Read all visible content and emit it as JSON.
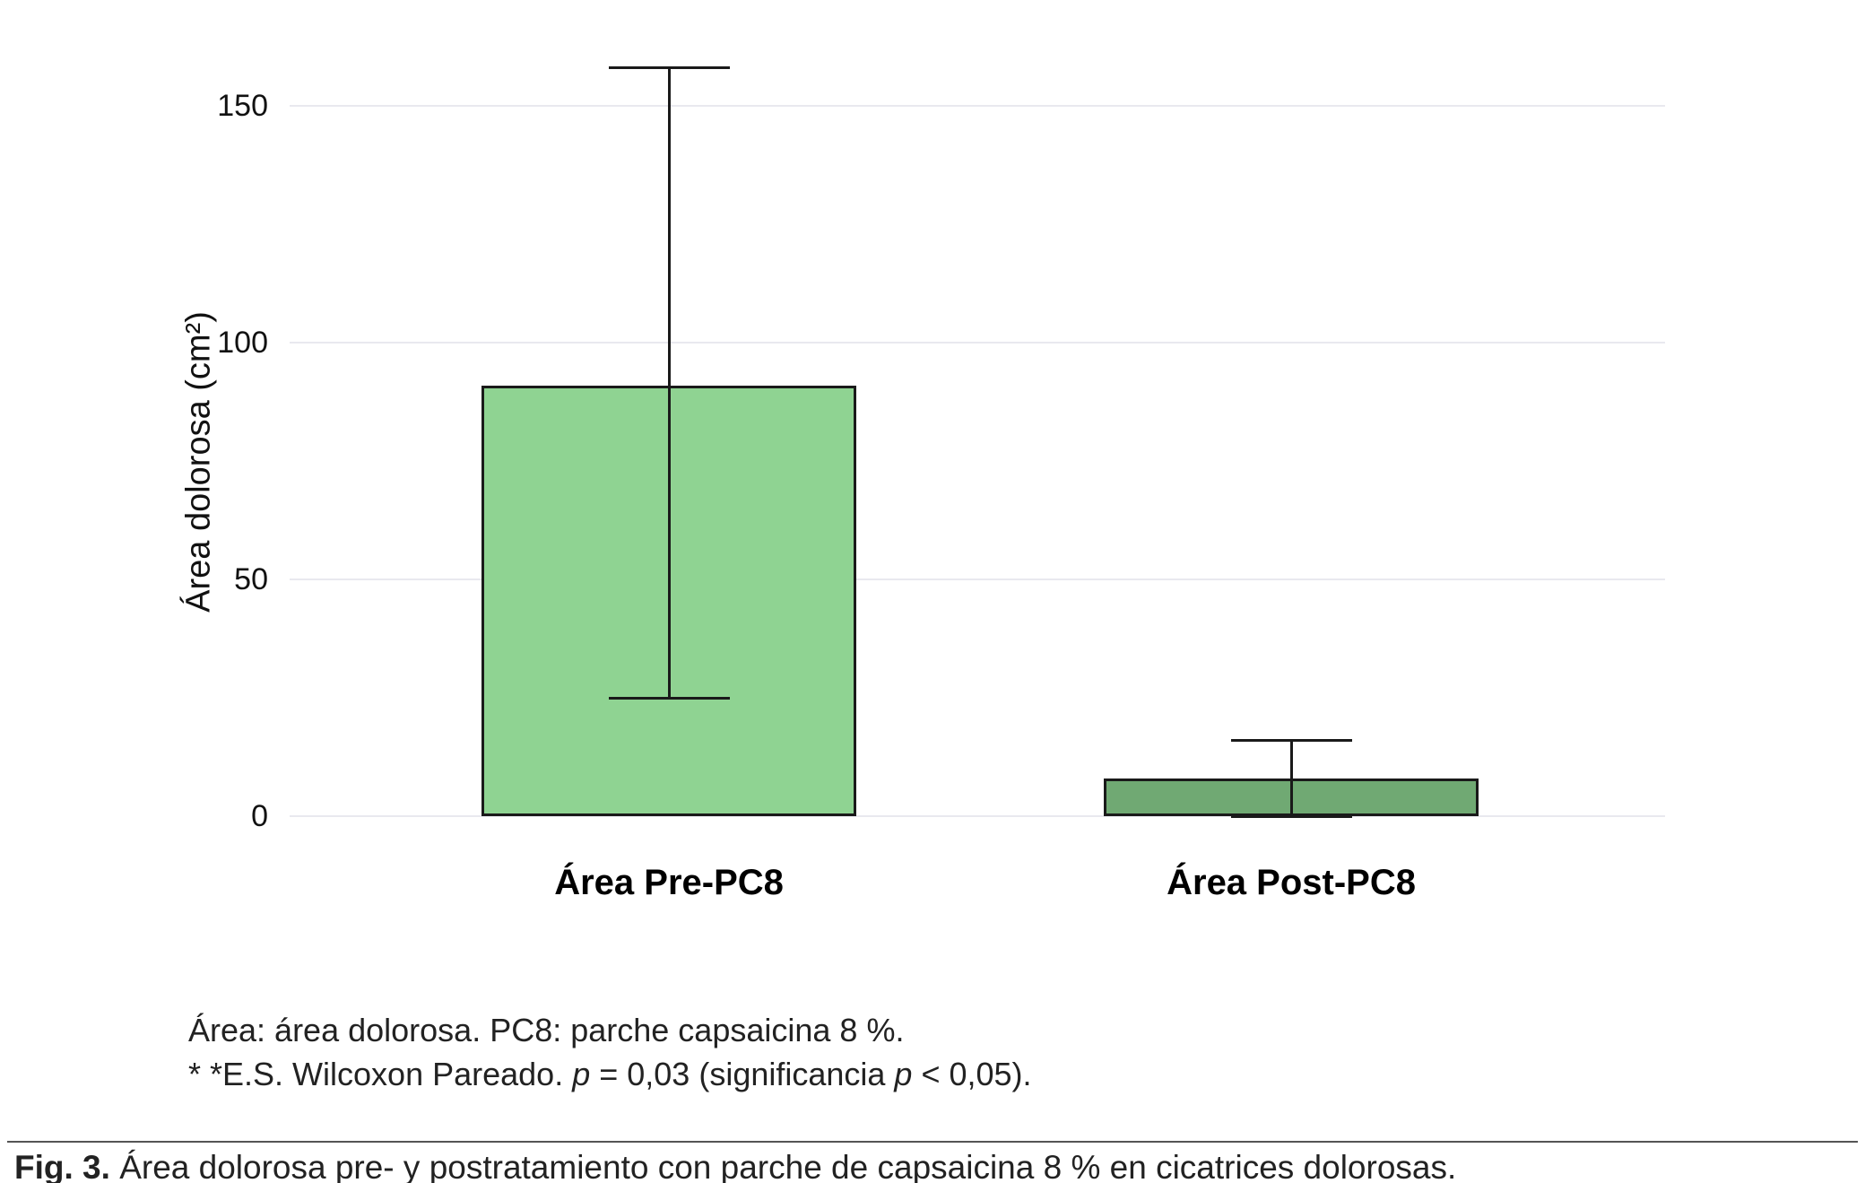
{
  "figure": {
    "caption_label": "Fig. 3.",
    "caption_text": "Área dolorosa pre- y postratamiento con parche de capsaicina 8 % en cicatrices dolorosas."
  },
  "footnotes": {
    "line1": "Área: área dolorosa. PC8: parche capsaicina 8 %.",
    "line2_part1": "* *E.S. Wilcoxon Pareado. ",
    "line2_p1": "p",
    "line2_part2": " = 0,03 (significancia ",
    "line2_p2": "p",
    "line2_part3": " < 0,05)."
  },
  "chart_data": {
    "type": "bar",
    "title": "",
    "xlabel": "",
    "ylabel": "Área dolorosa (cm²)",
    "categories": [
      "Área Pre-PC8",
      "Área Post-PC8"
    ],
    "values": [
      91,
      8
    ],
    "error_bars": [
      {
        "low": 25,
        "high": 158
      },
      {
        "low": 0,
        "high": 16
      }
    ],
    "bar_colors": [
      "#8fd392",
      "#70a973"
    ],
    "bar_border_color": "#1a1a1a",
    "yticks": [
      0,
      50,
      100,
      150
    ],
    "ylim": [
      0,
      161
    ],
    "grid": "horizontal-major",
    "gridline_color": "#e9e9ef",
    "legend": "none"
  }
}
